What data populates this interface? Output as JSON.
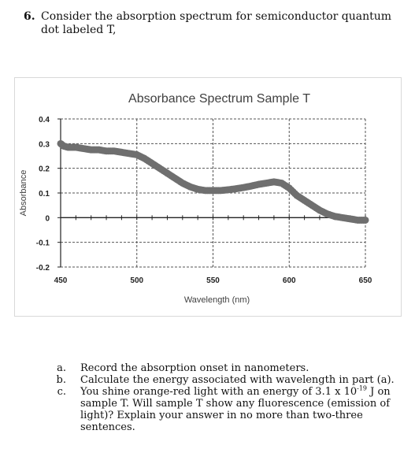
{
  "question": {
    "number": "6.",
    "text": "Consider the absorption spectrum for semiconductor quantum dot labeled T,"
  },
  "chart_data": {
    "type": "scatter",
    "title": "Absorbance Spectrum Sample T",
    "xlabel": "Wavelength (nm)",
    "ylabel": "Absorbance",
    "xlim": [
      450,
      650
    ],
    "ylim": [
      -0.2,
      0.4
    ],
    "x_ticks": [
      "450",
      "500",
      "550",
      "600",
      "650"
    ],
    "y_ticks": [
      "0.4",
      "0.3",
      "0.2",
      "0.1",
      "0",
      "-0.1",
      "-0.2"
    ],
    "grid": true,
    "marker_color": "#6f6f6f",
    "series": [
      {
        "x": [
          450,
          452,
          455,
          460,
          465,
          470,
          475,
          480,
          485,
          490,
          495,
          500,
          505,
          510,
          515,
          520,
          525,
          530,
          535,
          540,
          545,
          550,
          555,
          560,
          565,
          570,
          575,
          580,
          585,
          590,
          595,
          600,
          605,
          610,
          615,
          620,
          625,
          630,
          635,
          640,
          645,
          650
        ],
        "y": [
          0.3,
          0.29,
          0.285,
          0.285,
          0.28,
          0.275,
          0.275,
          0.27,
          0.27,
          0.265,
          0.26,
          0.255,
          0.24,
          0.22,
          0.2,
          0.18,
          0.16,
          0.14,
          0.125,
          0.115,
          0.11,
          0.11,
          0.11,
          0.113,
          0.117,
          0.122,
          0.128,
          0.135,
          0.14,
          0.145,
          0.14,
          0.12,
          0.09,
          0.07,
          0.05,
          0.03,
          0.015,
          0.005,
          0.0,
          -0.005,
          -0.01,
          -0.01
        ]
      }
    ]
  },
  "parts": [
    {
      "letter": "a.",
      "text": "Record the absorption onset in nanometers."
    },
    {
      "letter": "b.",
      "text": "Calculate the energy associated with wavelength in part (a)."
    },
    {
      "letter": "c.",
      "pre": "You shine orange-red light with an energy of 3.1 x 10",
      "sup": "-19",
      "post": " J on sample T. Will sample T show any fluorescence (emission of light)? Explain your answer in no more than two-three sentences."
    }
  ]
}
